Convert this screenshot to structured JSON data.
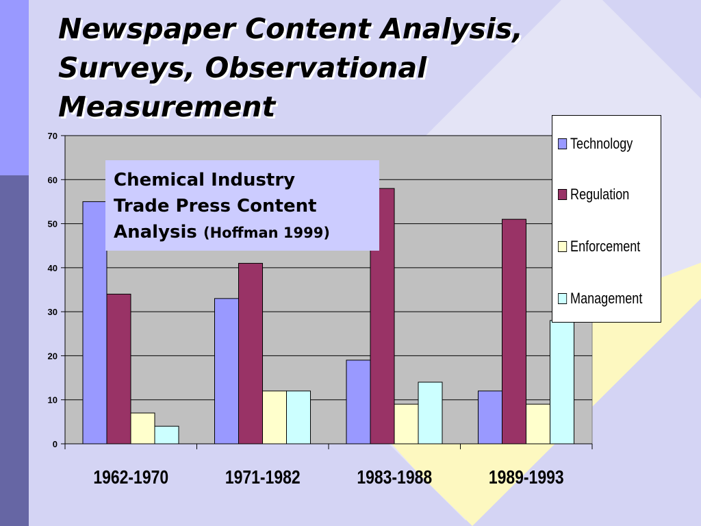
{
  "title_lines": [
    "Newspaper Content Analysis,",
    "Surveys, Observational",
    "Measurement"
  ],
  "annotation": {
    "lines": [
      "Chemical Industry",
      "Trade Press Content",
      "Analysis"
    ],
    "citation": "(Hoffman 1999)"
  },
  "colors": {
    "background": "#d4d4f4",
    "plot_area": "#c0c0c0",
    "side_bar_light": "#9999ff",
    "side_bar_dark": "#6666a4",
    "diamond": "#fdf8c0",
    "annotation_box": "#ccccff"
  },
  "chart_data": {
    "type": "bar",
    "categories": [
      "1962-1970",
      "1971-1982",
      "1983-1988",
      "1989-1993"
    ],
    "series": [
      {
        "name": "Technology",
        "color": "#9999ff",
        "values": [
          55,
          33,
          19,
          12
        ]
      },
      {
        "name": "Regulation",
        "color": "#993366",
        "values": [
          34,
          41,
          58,
          51
        ]
      },
      {
        "name": "Enforcement",
        "color": "#ffffcc",
        "values": [
          7,
          12,
          9,
          9
        ]
      },
      {
        "name": "Management",
        "color": "#ccffff",
        "values": [
          4,
          12,
          14,
          28
        ]
      }
    ],
    "ylim": [
      0,
      70
    ],
    "yticks": [
      0,
      10,
      20,
      30,
      40,
      50,
      60,
      70
    ],
    "grid": true,
    "legend_position": "right",
    "xlabel": "",
    "ylabel": ""
  }
}
